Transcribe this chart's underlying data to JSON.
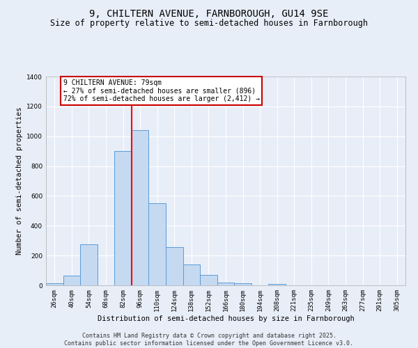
{
  "title_line1": "9, CHILTERN AVENUE, FARNBOROUGH, GU14 9SE",
  "title_line2": "Size of property relative to semi-detached houses in Farnborough",
  "xlabel": "Distribution of semi-detached houses by size in Farnborough",
  "ylabel": "Number of semi-detached properties",
  "bin_labels": [
    "26sqm",
    "40sqm",
    "54sqm",
    "68sqm",
    "82sqm",
    "96sqm",
    "110sqm",
    "124sqm",
    "138sqm",
    "152sqm",
    "166sqm",
    "180sqm",
    "194sqm",
    "208sqm",
    "221sqm",
    "235sqm",
    "249sqm",
    "263sqm",
    "277sqm",
    "291sqm",
    "305sqm"
  ],
  "bar_values": [
    15,
    65,
    275,
    0,
    900,
    1040,
    550,
    255,
    140,
    70,
    20,
    15,
    0,
    10,
    0,
    0,
    0,
    0,
    0,
    0,
    0
  ],
  "bar_color": "#c5d9f1",
  "bar_edge_color": "#5b9bd5",
  "red_line_bin_idx": 4,
  "annotation_title": "9 CHILTERN AVENUE: 79sqm",
  "annotation_line2": "← 27% of semi-detached houses are smaller (896)",
  "annotation_line3": "72% of semi-detached houses are larger (2,412) →",
  "annotation_box_color": "#ffffff",
  "annotation_box_edge_color": "#cc0000",
  "ylim": [
    0,
    1400
  ],
  "yticks": [
    0,
    200,
    400,
    600,
    800,
    1000,
    1200,
    1400
  ],
  "background_color": "#e8eef8",
  "grid_color": "#ffffff",
  "footer_line1": "Contains HM Land Registry data © Crown copyright and database right 2025.",
  "footer_line2": "Contains public sector information licensed under the Open Government Licence v3.0.",
  "title_fontsize": 10,
  "subtitle_fontsize": 8.5,
  "axis_label_fontsize": 7.5,
  "tick_fontsize": 6.5,
  "annotation_fontsize": 7,
  "footer_fontsize": 6
}
